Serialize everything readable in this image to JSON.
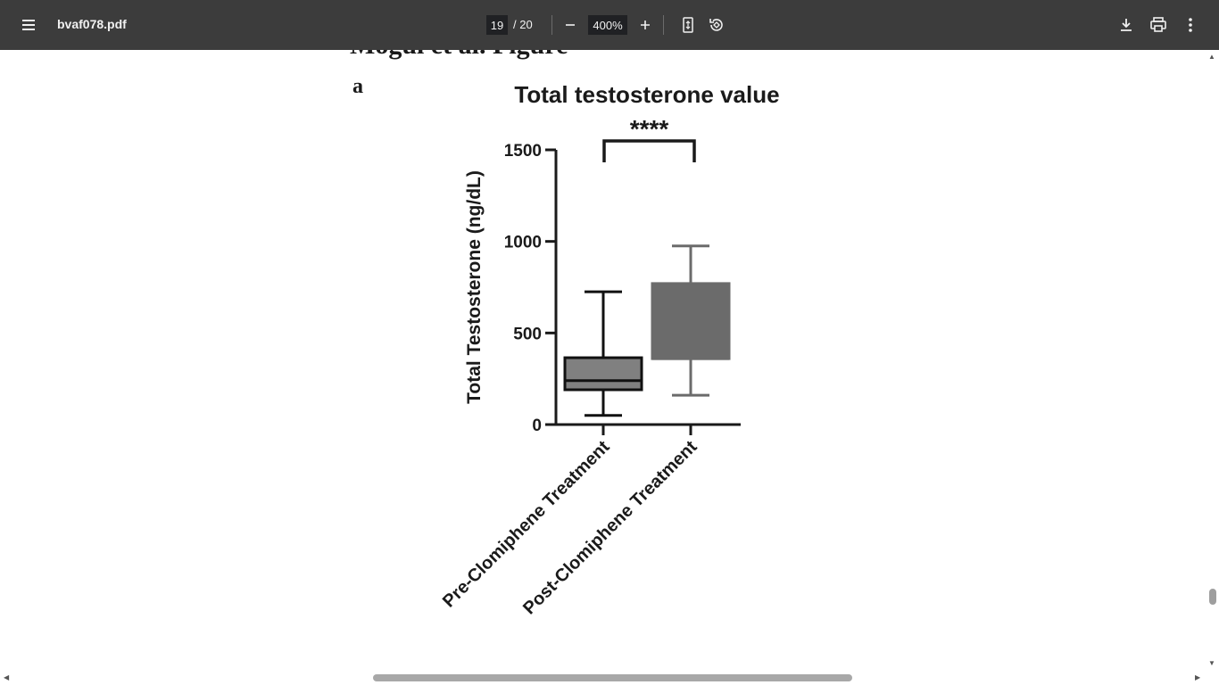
{
  "toolbar": {
    "file_name": "bvaf078.pdf",
    "page_current": "19",
    "page_total": "/ 20",
    "zoom": "400%",
    "icons": [
      "menu-icon",
      "zoom-out-icon",
      "zoom-in-icon",
      "fit-page-icon",
      "rotate-icon",
      "download-icon",
      "print-icon",
      "more-icon"
    ]
  },
  "document": {
    "heading_partial": "Mogul et al. Figure",
    "panel_label": "a"
  },
  "chart_data": {
    "type": "box",
    "title": "Total testosterone value",
    "ylabel": "Total Testosterone (ng/dL)",
    "ylim": [
      0,
      1500
    ],
    "yticks": [
      "0",
      "500",
      "1000",
      "1500"
    ],
    "categories": [
      "Pre-Clomiphene Treatment",
      "Post-Clomiphene Treatment"
    ],
    "boxes": [
      {
        "min": 50,
        "q1": 190,
        "median": 240,
        "q3": 365,
        "max": 725,
        "color": "#808080"
      },
      {
        "min": 160,
        "q1": 360,
        "median": 360,
        "q3": 770,
        "max": 975,
        "color": "#6b6b6b"
      }
    ],
    "significance": "****"
  }
}
